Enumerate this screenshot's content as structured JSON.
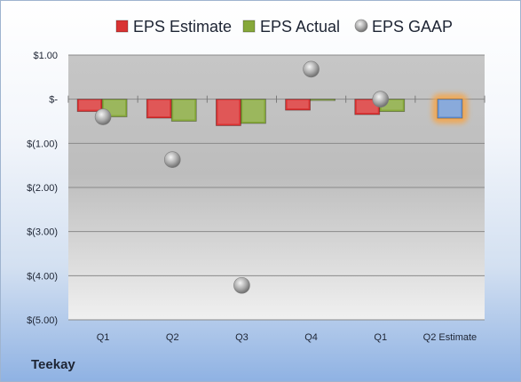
{
  "company": "Teekay",
  "chart_data": {
    "type": "bar",
    "categories": [
      "Q1",
      "Q2",
      "Q3",
      "Q4",
      "Q1",
      "Q2 Estimate"
    ],
    "series": [
      {
        "name": "EPS Estimate",
        "values": [
          -0.28,
          -0.43,
          -0.6,
          -0.25,
          -0.35,
          null
        ],
        "color": "#d93333"
      },
      {
        "name": "EPS Actual",
        "values": [
          -0.4,
          -0.5,
          -0.55,
          -0.02,
          -0.28,
          null
        ],
        "color": "#86a83a"
      },
      {
        "name": "EPS GAAP",
        "type": "scatter",
        "values": [
          -0.4,
          -1.37,
          -4.22,
          0.68,
          0.0,
          null
        ],
        "color": "#a8a8a8"
      },
      {
        "name": "Q2 Estimate",
        "values": [
          null,
          null,
          null,
          null,
          null,
          -0.43
        ],
        "color": "#6f98d4",
        "highlight": "#f5a54a"
      }
    ],
    "ylim": [
      -5.0,
      1.0
    ],
    "yticks": [
      1.0,
      0.0,
      -1.0,
      -2.0,
      -3.0,
      -4.0,
      -5.0
    ],
    "ytick_labels": [
      "$1.00",
      "$-",
      "$(1.00)",
      "$(2.00)",
      "$(3.00)",
      "$(4.00)",
      "$(5.00)"
    ],
    "legend": {
      "placement": "top",
      "entries": [
        "EPS Estimate",
        "EPS Actual",
        "EPS GAAP"
      ]
    },
    "grid": true
  }
}
